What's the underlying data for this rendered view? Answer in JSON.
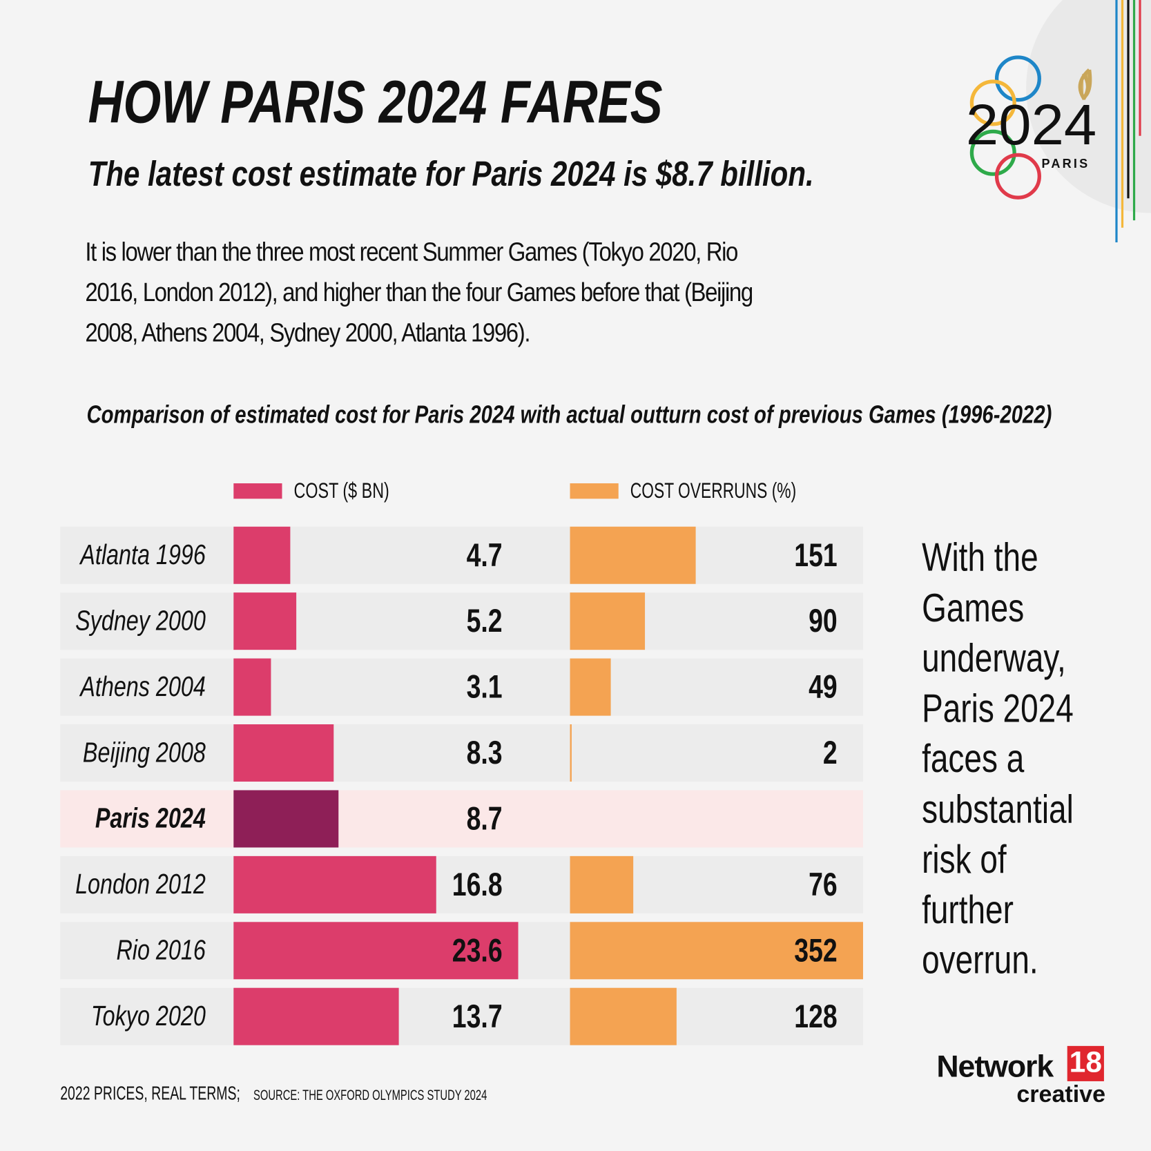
{
  "chart_data": {
    "type": "bar",
    "title": "HOW PARIS 2024 FARES",
    "subtitle": "The latest cost estimate for Paris 2024 is $8.7 billion.",
    "description": "It is lower than the three most recent Summer Games (Tokyo 2020, Rio 2016, London 2012), and higher than the four Games before that (Beijing 2008, Athens 2004, Sydney 2000, Atlanta 1996).",
    "chart_title": "Comparison of estimated cost for Paris 2024 with actual outturn cost of previous Games (1996-2022)",
    "categories": [
      "Atlanta 1996",
      "Sydney 2000",
      "Athens 2004",
      "Beijing 2008",
      "Paris 2024",
      "London 2012",
      "Rio 2016",
      "Tokyo 2020"
    ],
    "series": [
      {
        "name": "COST ($ BN)",
        "color": "#dc3d6b",
        "values": [
          4.7,
          5.2,
          3.1,
          8.3,
          8.7,
          16.8,
          23.6,
          13.7
        ],
        "xlim": [
          0,
          24.3
        ]
      },
      {
        "name": "COST OVERRUNS (%)",
        "color": "#f4a352",
        "values": [
          151,
          90,
          49,
          2,
          null,
          76,
          352,
          128
        ],
        "xlim": [
          0,
          352
        ]
      }
    ],
    "highlight": "Paris 2024",
    "highlight_color": "#8e1f57",
    "annotation": "With the Games underway, Paris 2024 faces a substantial risk of further overrun.",
    "footnote": "2022 PRICES, REAL TERMS;",
    "source": "SOURCE: THE OXFORD OLYMPICS STUDY 2024",
    "logo_text": "2024",
    "logo_subtext": "PARIS",
    "brand": "Network",
    "brand_number": "18",
    "brand_sub": "creative"
  }
}
